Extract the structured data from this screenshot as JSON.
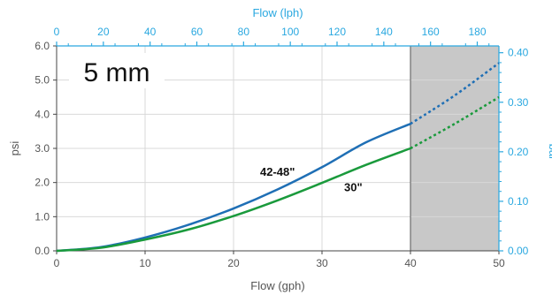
{
  "chart_data": {
    "type": "line",
    "title": "5 mm",
    "xlabel": "Flow (gph)",
    "ylabel": "psi",
    "x2label": "Flow (lph)",
    "y2label": "bar",
    "xlim": [
      0,
      50
    ],
    "ylim": [
      0,
      6
    ],
    "x2lim": [
      0,
      189.27
    ],
    "y2lim": [
      0,
      0.4137
    ],
    "xticks": [
      0,
      10,
      20,
      30,
      40,
      50
    ],
    "yticks": [
      "0.0",
      "1.0",
      "2.0",
      "3.0",
      "4.0",
      "5.0",
      "6.0"
    ],
    "x2ticks": [
      0,
      20,
      40,
      60,
      80,
      100,
      120,
      140,
      160,
      180
    ],
    "y2ticks": [
      "0.00",
      "0.10",
      "0.20",
      "0.30",
      "0.40"
    ],
    "grid": true,
    "shaded_region": [
      40,
      50
    ],
    "series": [
      {
        "name": "42-48\"",
        "color": "#1f6fb5",
        "solid_until": 40,
        "x": [
          0,
          5,
          10,
          15,
          20,
          25,
          30,
          35,
          40,
          45,
          50
        ],
        "y": [
          0,
          0.11,
          0.39,
          0.77,
          1.24,
          1.8,
          2.45,
          3.18,
          3.72,
          4.55,
          5.5
        ]
      },
      {
        "name": "30\"",
        "color": "#1a9a3c",
        "solid_until": 40,
        "x": [
          0,
          5,
          10,
          15,
          20,
          25,
          30,
          35,
          40,
          45,
          50
        ],
        "y": [
          0,
          0.09,
          0.33,
          0.63,
          1.02,
          1.48,
          1.99,
          2.52,
          3.0,
          3.72,
          4.5
        ]
      }
    ]
  },
  "colors": {
    "secondary_axis": "#2aa8e0",
    "shade": "#c8c8c8",
    "grid": "#d9d9d9"
  }
}
